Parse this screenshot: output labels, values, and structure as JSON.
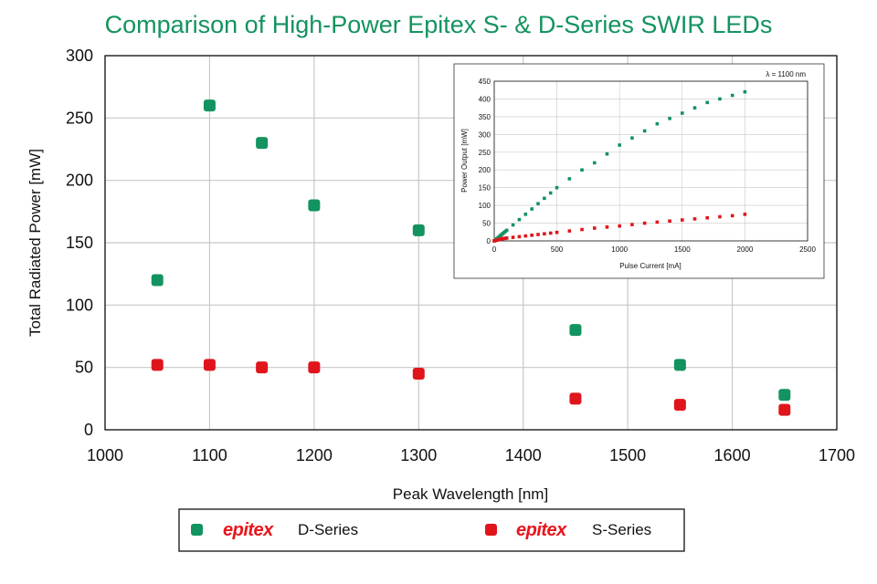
{
  "chart_data": [
    {
      "type": "scatter",
      "title": "Comparison of High-Power Epitex S- & D-Series SWIR LEDs",
      "xlabel": "Peak Wavelength [nm]",
      "ylabel": "Total Radiated Power [mW]",
      "xlim": [
        1000,
        1700
      ],
      "ylim": [
        0,
        300
      ],
      "xticks": [
        "1000",
        "1100",
        "1200",
        "1300",
        "1400",
        "1500",
        "1600",
        "1700"
      ],
      "yticks": [
        "0",
        "50",
        "100",
        "150",
        "200",
        "250",
        "300"
      ],
      "grid": true,
      "legend_position": "bottom",
      "series": [
        {
          "name": "D-Series",
          "brand": "epitex",
          "color": "#13935f",
          "x": [
            1050,
            1100,
            1150,
            1200,
            1300,
            1450,
            1550,
            1650
          ],
          "y": [
            120,
            260,
            230,
            180,
            160,
            80,
            52,
            28
          ]
        },
        {
          "name": "S-Series",
          "brand": "epitex",
          "color": "#e0151b",
          "x": [
            1050,
            1100,
            1150,
            1200,
            1300,
            1450,
            1550,
            1650
          ],
          "y": [
            52,
            52,
            50,
            50,
            45,
            25,
            20,
            16
          ]
        }
      ]
    },
    {
      "type": "scatter",
      "annotation": "λ = 1100 nm",
      "xlabel": "Pulse Current [mA]",
      "ylabel": "Power Output [mW]",
      "xlim": [
        0,
        2500
      ],
      "ylim": [
        0,
        450
      ],
      "xticks": [
        "0",
        "500",
        "1000",
        "1500",
        "2000",
        "2500"
      ],
      "yticks": [
        "0",
        "50",
        "100",
        "150",
        "200",
        "250",
        "300",
        "350",
        "400",
        "450"
      ],
      "grid": true,
      "series": [
        {
          "color": "#13935f",
          "x": [
            0,
            10,
            20,
            30,
            40,
            50,
            60,
            70,
            80,
            90,
            100,
            150,
            200,
            250,
            300,
            350,
            400,
            450,
            500,
            600,
            700,
            800,
            900,
            1000,
            1100,
            1200,
            1300,
            1400,
            1500,
            1600,
            1700,
            1800,
            1900,
            2000
          ],
          "y": [
            0,
            3,
            6,
            9,
            12,
            15,
            18,
            21,
            24,
            27,
            30,
            45,
            60,
            75,
            90,
            105,
            120,
            135,
            150,
            175,
            200,
            220,
            245,
            270,
            290,
            310,
            330,
            345,
            360,
            375,
            390,
            400,
            410,
            420
          ]
        },
        {
          "color": "#e0151b",
          "x": [
            0,
            10,
            20,
            30,
            40,
            50,
            60,
            70,
            80,
            90,
            100,
            150,
            200,
            250,
            300,
            350,
            400,
            450,
            500,
            600,
            700,
            800,
            900,
            1000,
            1100,
            1200,
            1300,
            1400,
            1500,
            1600,
            1700,
            1800,
            1900,
            2000
          ],
          "y": [
            0,
            1,
            2,
            3,
            4,
            5,
            6,
            6.5,
            7,
            7.5,
            8,
            10,
            12,
            14,
            16,
            18,
            20,
            22,
            24,
            28,
            32,
            36,
            39,
            42,
            46,
            50,
            53,
            56,
            59,
            62,
            65,
            68,
            71,
            75
          ]
        }
      ]
    }
  ]
}
